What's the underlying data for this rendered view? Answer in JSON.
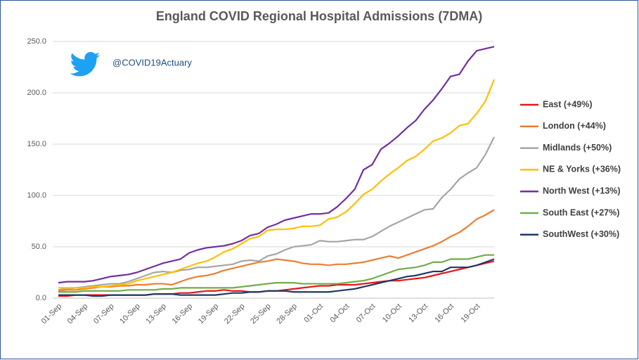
{
  "chart_data": {
    "type": "line",
    "title": "England COVID Regional Hospital Admissions  (7DMA)",
    "handle": "@COVID19Actuary",
    "categories": [
      "01-Sep",
      null,
      null,
      "04-Sep",
      null,
      null,
      "07-Sep",
      null,
      null,
      "10-Sep",
      null,
      null,
      "13-Sep",
      null,
      null,
      "16-Sep",
      null,
      null,
      "19-Sep",
      null,
      null,
      "22-Sep",
      null,
      null,
      "25-Sep",
      null,
      null,
      "28-Sep",
      null,
      null,
      "01-Oct",
      null,
      null,
      "04-Oct",
      null,
      null,
      "07-Oct",
      null,
      null,
      "10-Oct",
      null,
      null,
      "13-Oct",
      null,
      null,
      "16-Oct",
      null,
      null,
      "19-Oct",
      null,
      null
    ],
    "ylim": [
      0,
      250
    ],
    "yticks": [
      {
        "value": 0,
        "label": "0.0"
      },
      {
        "value": 50,
        "label": "50.0"
      },
      {
        "value": 100,
        "label": "100.0"
      },
      {
        "value": 150,
        "label": "150.0"
      },
      {
        "value": 200,
        "label": "200.0"
      },
      {
        "value": 250,
        "label": "250.0"
      }
    ],
    "grid": true,
    "legend": "right",
    "series": [
      {
        "name": "East (+49%)",
        "color": "#e8151b",
        "values": [
          2,
          2,
          3,
          3,
          3,
          3,
          3,
          3,
          3,
          3,
          3,
          4,
          4,
          4,
          5,
          5,
          6,
          7,
          7,
          8,
          7,
          7,
          6,
          6,
          7,
          7,
          8,
          9,
          10,
          11,
          12,
          12,
          13,
          13,
          13,
          14,
          15,
          16,
          17,
          17,
          18,
          19,
          20,
          22,
          24,
          26,
          28,
          30,
          32,
          34,
          36
        ]
      },
      {
        "name": "London (+44%)",
        "color": "#ed7d31",
        "values": [
          7,
          8,
          8,
          9,
          10,
          11,
          11,
          12,
          12,
          13,
          13,
          14,
          14,
          13,
          16,
          19,
          21,
          22,
          24,
          27,
          29,
          31,
          33,
          35,
          36,
          38,
          37,
          36,
          34,
          33,
          33,
          32,
          33,
          33,
          34,
          35,
          37,
          39,
          41,
          39,
          42,
          45,
          48,
          51,
          55,
          60,
          64,
          70,
          77,
          81,
          86
        ]
      },
      {
        "name": "Midlands (+50%)",
        "color": "#a5a5a5",
        "values": [
          8,
          9,
          10,
          11,
          12,
          13,
          14,
          14,
          16,
          19,
          22,
          25,
          26,
          25,
          27,
          28,
          30,
          30,
          31,
          32,
          33,
          36,
          37,
          36,
          41,
          43,
          47,
          50,
          51,
          52,
          56,
          55,
          55,
          56,
          57,
          57,
          60,
          65,
          70,
          74,
          78,
          82,
          86,
          87,
          98,
          106,
          116,
          122,
          127,
          140,
          157
        ]
      },
      {
        "name": "NE & Yorks (+36%)",
        "color": "#ffc000",
        "values": [
          10,
          10,
          10,
          10,
          11,
          11,
          12,
          13,
          14,
          17,
          19,
          21,
          23,
          25,
          28,
          31,
          34,
          36,
          40,
          45,
          48,
          53,
          58,
          60,
          66,
          67,
          67,
          68,
          70,
          70,
          71,
          77,
          79,
          84,
          92,
          101,
          106,
          114,
          121,
          127,
          134,
          138,
          145,
          153,
          156,
          161,
          168,
          170,
          180,
          192,
          213
        ]
      },
      {
        "name": "North West (+13%)",
        "color": "#7030a0",
        "values": [
          15,
          16,
          16,
          16,
          17,
          19,
          21,
          22,
          23,
          25,
          28,
          31,
          34,
          36,
          38,
          44,
          47,
          49,
          50,
          51,
          53,
          56,
          61,
          63,
          69,
          72,
          76,
          78,
          80,
          82,
          82,
          83,
          89,
          97,
          106,
          125,
          130,
          145,
          151,
          158,
          166,
          173,
          184,
          193,
          204,
          216,
          218,
          231,
          241,
          243,
          245
        ]
      },
      {
        "name": "South East (+27%)",
        "color": "#70ad47",
        "values": [
          6,
          6,
          6,
          7,
          7,
          7,
          7,
          7,
          8,
          8,
          8,
          8,
          9,
          9,
          10,
          10,
          10,
          10,
          10,
          10,
          10,
          11,
          12,
          13,
          14,
          15,
          15,
          15,
          14,
          14,
          14,
          14,
          14,
          15,
          16,
          17,
          19,
          22,
          25,
          28,
          29,
          30,
          32,
          35,
          35,
          38,
          38,
          38,
          40,
          42,
          42
        ]
      },
      {
        "name": "SouthWest (+30%)",
        "color": "#203864",
        "values": [
          3,
          3,
          3,
          3,
          2,
          2,
          3,
          3,
          3,
          3,
          3,
          4,
          4,
          4,
          3,
          3,
          3,
          3,
          3,
          4,
          5,
          5,
          6,
          6,
          7,
          7,
          7,
          6,
          6,
          6,
          6,
          6,
          7,
          8,
          9,
          11,
          13,
          15,
          17,
          19,
          21,
          22,
          24,
          26,
          26,
          30,
          30,
          30,
          32,
          35,
          38
        ]
      }
    ]
  }
}
